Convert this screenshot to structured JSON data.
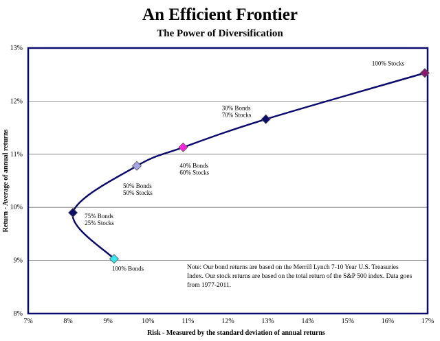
{
  "chart_data": {
    "type": "line",
    "title": "An Efficient Frontier",
    "subtitle": "The Power of Diversification",
    "xlabel": "Risk - Measured by the standard deviation of annual returns",
    "ylabel": "Return - Average of annual returns",
    "xlim": [
      7,
      17
    ],
    "ylim": [
      8,
      13
    ],
    "x_ticks": [
      "7%",
      "8%",
      "9%",
      "10%",
      "11%",
      "12%",
      "13%",
      "14%",
      "15%",
      "16%",
      "17%"
    ],
    "y_ticks": [
      "8%",
      "9%",
      "10%",
      "11%",
      "12%",
      "13%"
    ],
    "grid": "horizontal",
    "points": [
      {
        "x": 9.15,
        "y": 9.03,
        "label": [
          "100% Bonds"
        ],
        "color": "#33e6f0"
      },
      {
        "x": 8.12,
        "y": 9.9,
        "label": [
          "75% Bonds",
          "25% Stocks"
        ],
        "color": "#0b0b6e"
      },
      {
        "x": 9.72,
        "y": 10.78,
        "label": [
          "50% Bonds",
          "50% Stocks"
        ],
        "color": "#a5a5e6"
      },
      {
        "x": 10.88,
        "y": 11.13,
        "label": [
          "40% Bonds",
          "60% Stocks"
        ],
        "color": "#ff22dd"
      },
      {
        "x": 12.95,
        "y": 11.66,
        "label": [
          "30% Bonds",
          "70% Stocks"
        ],
        "color": "#0b0b6e"
      },
      {
        "x": 16.93,
        "y": 12.53,
        "label": [
          "100% Stocks"
        ],
        "color": "#8b1a6e"
      }
    ],
    "line_color": "#0b0b6e"
  },
  "note": "Note:  Our bond returns  are based on the Merrill  Lynch  7-10 Year U.S. Treasuries  Index.  Our stock returns  are based on the total return of the S&P 500 index.   Data goes from  1977-2011."
}
